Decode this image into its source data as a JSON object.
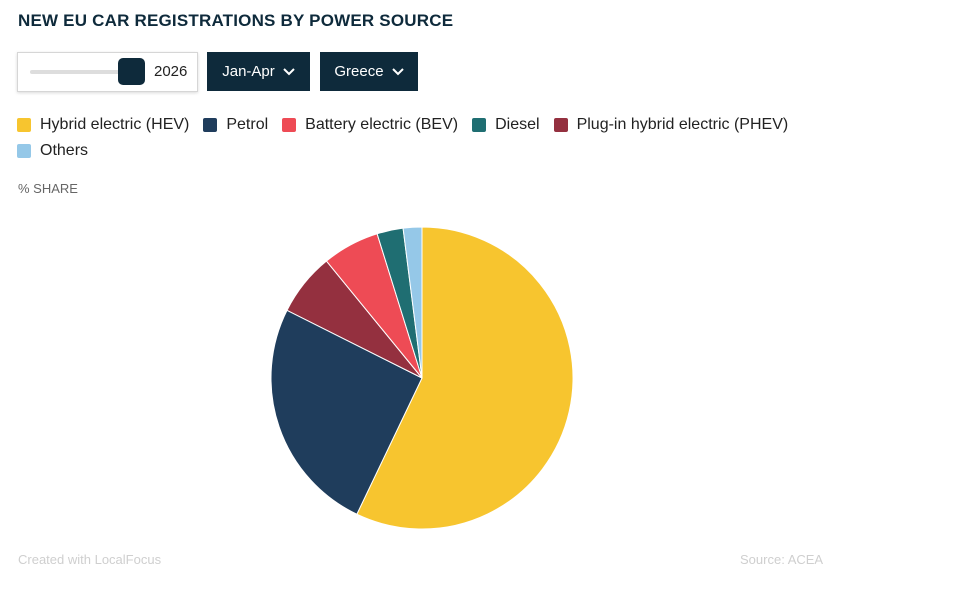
{
  "chart_data": {
    "type": "pie",
    "title": "NEW EU CAR REGISTRATIONS BY POWER SOURCE",
    "controls": {
      "year": "2026",
      "period": "Jan-Apr",
      "region": "Greece"
    },
    "value_label": "% SHARE",
    "series": [
      {
        "name": "Hybrid electric (HEV)",
        "color": "#f7c52f",
        "value": 57.1
      },
      {
        "name": "Petrol",
        "color": "#1f3d5c",
        "value": 25.3
      },
      {
        "name": "Plug-in hybrid electric (PHEV)",
        "color": "#94303f",
        "value": 6.7
      },
      {
        "name": "Battery electric (BEV)",
        "color": "#ee4b55",
        "value": 6.1
      },
      {
        "name": "Diesel",
        "color": "#1f6e72",
        "value": 2.8
      },
      {
        "name": "Others",
        "color": "#95c8e8",
        "value": 2.0
      }
    ],
    "legend_order": [
      0,
      1,
      3,
      4,
      2,
      5
    ],
    "credit": "Created with LocalFocus",
    "source": "Source: ACEA"
  }
}
